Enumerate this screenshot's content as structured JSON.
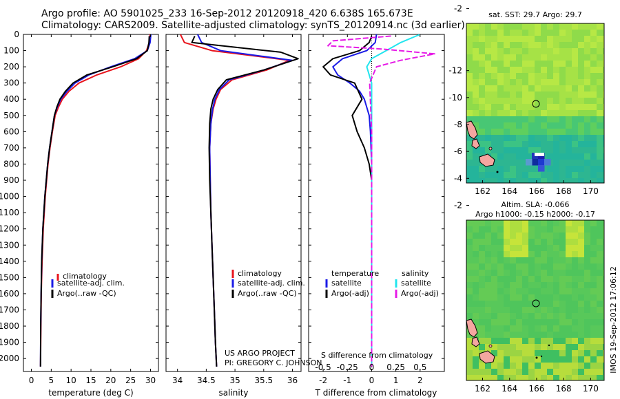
{
  "header": {
    "line1": "Argo profile: AO 5901025_233 16-Sep-2012 20120918_420 6.638S 165.673E",
    "line2": "Climatology: CARS2009. Satellite-adjusted climatology: synTS_20120914.nc (3d earlier)"
  },
  "depth_ticks": [
    "0",
    "100",
    "200",
    "300",
    "400",
    "500",
    "600",
    "700",
    "800",
    "900",
    "1000",
    "1100",
    "1200",
    "1300",
    "1400",
    "1500",
    "1600",
    "1700",
    "1800",
    "1900",
    "2000"
  ],
  "colors": {
    "climatology": "#e8141c",
    "satellite": "#1a1ae6",
    "argo": "#000000",
    "sat_salinity": "#22e5ee",
    "argo_salinity": "#e61ae6"
  },
  "panels": {
    "temperature": {
      "xlabel": "temperature (deg C)",
      "ticks": [
        "0",
        "5",
        "10",
        "15",
        "20",
        "25",
        "30"
      ],
      "legend": [
        "climatology",
        "satellite-adj. clim.",
        "Argo(..raw -QC)"
      ]
    },
    "salinity": {
      "xlabel": "salinity",
      "ticks": [
        "34",
        "34.5",
        "35",
        "35.5",
        "36"
      ],
      "legend": [
        "climatology",
        "satellite-adj. clim.",
        "Argo(..raw -QC)"
      ],
      "credit1": "US ARGO PROJECT",
      "credit2": "PI: GREGORY C. JOHNSON"
    },
    "difference": {
      "xlabel": "T difference from climatology",
      "xlabel_top": "S difference from climatology",
      "ticks_T": [
        "-2",
        "-1",
        "0",
        "1",
        "2"
      ],
      "ticks_S": [
        "-0.5",
        "-0.25",
        "0",
        "0.25",
        "0.5"
      ],
      "legend_temperature": "temperature",
      "legend_salinity": "salinity",
      "legend_sat": "satellite",
      "legend_argo": "Argo(-adj)"
    }
  },
  "maps": {
    "sst_title": "sat. SST: 29.7 Argo: 29.7",
    "sla_title1": "Altim. SLA: -0.066",
    "sla_title2": "Argo h1000: -0.15 h2000: -0.17",
    "yticks": [
      "-2",
      "-4",
      "-6",
      "-8",
      "-10",
      "-12"
    ],
    "xticks": [
      "162",
      "164",
      "166",
      "168",
      "170"
    ]
  },
  "stamp": "IMOS 19-Sep-2012 17:06:12",
  "chart_data": [
    {
      "type": "line",
      "title": "",
      "xlabel": "temperature (deg C)",
      "ylabel": "",
      "xlim": [
        -2,
        32
      ],
      "ylim": [
        2080,
        0
      ],
      "series": [
        {
          "name": "climatology",
          "x": [
            29.9,
            29.7,
            29.0,
            27.0,
            22.5,
            16.5,
            12.0,
            9.5,
            7.8,
            6.8,
            6.0,
            5.3,
            4.7,
            4.2,
            3.5,
            3.0,
            2.7,
            2.5,
            2.4,
            2.3
          ],
          "y": [
            0,
            50,
            100,
            150,
            200,
            250,
            300,
            350,
            400,
            450,
            500,
            600,
            700,
            800,
            1000,
            1200,
            1400,
            1600,
            1800,
            2050
          ]
        },
        {
          "name": "satellite-adj. clim.",
          "x": [
            30.1,
            29.9,
            29.2,
            26.0,
            20.0,
            14.5,
            11.0,
            9.0,
            7.4,
            6.5,
            5.8,
            5.2,
            4.6,
            4.1,
            3.4,
            2.9,
            2.6,
            2.45,
            2.35,
            2.3
          ],
          "y": [
            0,
            50,
            100,
            150,
            200,
            250,
            300,
            350,
            400,
            450,
            500,
            600,
            700,
            800,
            1000,
            1200,
            1400,
            1600,
            1800,
            2050
          ]
        },
        {
          "name": "Argo(..raw -QC)",
          "x": [
            29.7,
            29.6,
            29.2,
            26.5,
            20.5,
            14.0,
            10.5,
            8.6,
            7.2,
            6.4,
            5.8,
            5.2,
            4.6,
            4.1,
            3.4,
            2.9,
            2.6,
            2.45,
            2.35,
            2.3
          ],
          "y": [
            10,
            50,
            100,
            150,
            200,
            250,
            300,
            350,
            400,
            450,
            500,
            600,
            700,
            800,
            1000,
            1200,
            1400,
            1600,
            1800,
            2050
          ]
        }
      ]
    },
    {
      "type": "line",
      "title": "",
      "xlabel": "salinity",
      "ylabel": "",
      "xlim": [
        33.8,
        36.15
      ],
      "ylim": [
        2080,
        0
      ],
      "series": [
        {
          "name": "climatology",
          "x": [
            34.05,
            34.12,
            34.6,
            35.95,
            35.55,
            34.95,
            34.75,
            34.67,
            34.62,
            34.58,
            34.56,
            34.57,
            34.58,
            34.6,
            34.62,
            34.64,
            34.66,
            34.68
          ],
          "y": [
            0,
            50,
            100,
            160,
            220,
            280,
            340,
            400,
            460,
            550,
            700,
            900,
            1100,
            1300,
            1500,
            1700,
            1900,
            2050
          ]
        },
        {
          "name": "satellite-adj. clim.",
          "x": [
            34.35,
            34.42,
            34.75,
            36.0,
            35.5,
            34.9,
            34.73,
            34.65,
            34.61,
            34.58,
            34.56,
            34.57,
            34.58,
            34.6,
            34.62,
            34.64,
            34.66,
            34.68
          ],
          "y": [
            0,
            50,
            100,
            160,
            220,
            280,
            340,
            400,
            460,
            550,
            700,
            900,
            1100,
            1300,
            1500,
            1700,
            1900,
            2050
          ]
        },
        {
          "name": "Argo(..raw -QC)",
          "x": [
            34.3,
            34.25,
            35.8,
            36.1,
            35.5,
            34.85,
            34.7,
            34.62,
            34.58,
            34.56,
            34.55,
            34.56,
            34.58,
            34.6,
            34.62,
            34.64,
            34.66,
            34.68
          ],
          "y": [
            10,
            50,
            110,
            150,
            220,
            280,
            340,
            400,
            460,
            550,
            700,
            900,
            1100,
            1300,
            1500,
            1700,
            1900,
            2050
          ]
        }
      ]
    },
    {
      "type": "line",
      "title": "",
      "xlabel": "T difference from climatology",
      "ylabel": "",
      "xlim": [
        -2.6,
        3.0
      ],
      "ylim": [
        2080,
        0
      ],
      "series": [
        {
          "name": "temperature satellite",
          "x": [
            0.2,
            0.15,
            -0.2,
            -1.2,
            -1.6,
            -1.4,
            -0.9,
            -0.5,
            -0.3,
            -0.2,
            -0.1,
            -0.05,
            0,
            0,
            0
          ],
          "y": [
            0,
            50,
            100,
            150,
            200,
            250,
            300,
            350,
            400,
            450,
            500,
            600,
            800,
            1200,
            2050
          ]
        },
        {
          "name": "temperature Argo(-adj)",
          "x": [
            0,
            -0.1,
            -0.5,
            -1.6,
            -2.0,
            -1.7,
            -0.7,
            -0.4,
            -0.8,
            -0.6,
            -0.3,
            -0.1,
            0,
            0,
            0
          ],
          "y": [
            10,
            50,
            100,
            150,
            200,
            250,
            300,
            400,
            500,
            600,
            700,
            800,
            900,
            1200,
            2050
          ]
        },
        {
          "name": "salinity satellite",
          "x": [
            0.5,
            0.3,
            0.15,
            0,
            -0.05,
            0,
            0,
            0,
            0
          ],
          "y": [
            0,
            50,
            100,
            150,
            200,
            300,
            600,
            1200,
            2050
          ]
        },
        {
          "name": "salinity Argo(-adj)",
          "x": [
            0.2,
            -0.4,
            -0.45,
            0.1,
            0.65,
            0.3,
            0.05,
            -0.02,
            0,
            0
          ],
          "y": [
            10,
            40,
            70,
            90,
            120,
            160,
            200,
            300,
            600,
            2050
          ]
        }
      ]
    }
  ]
}
